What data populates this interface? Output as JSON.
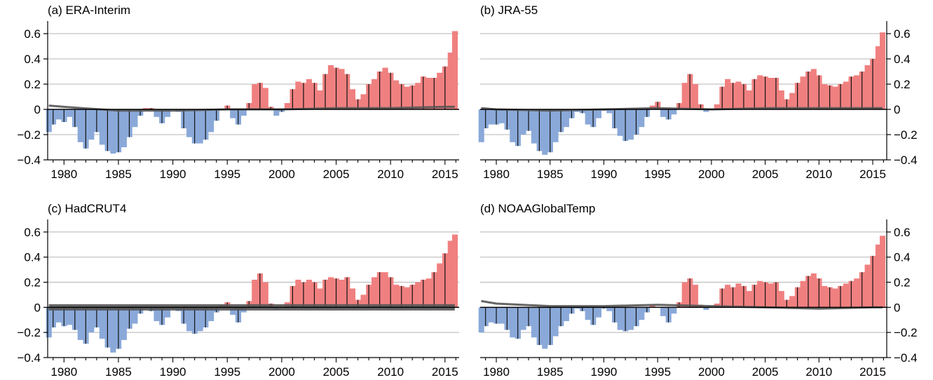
{
  "chart_data": [
    {
      "type": "area",
      "title": "(a) ERA-Interim",
      "xlim": [
        1978.5,
        2016.3
      ],
      "ylim": [
        -0.4,
        0.7
      ],
      "x_ticks": [
        1980,
        1985,
        1990,
        1995,
        2000,
        2005,
        2010,
        2015
      ],
      "y_ticks": [
        -0.4,
        -0.2,
        0,
        0.2,
        0.4,
        0.6
      ],
      "y_tick_labels": [
        "−0.4",
        "−0.2",
        "0",
        "0.2",
        "0.4",
        "0.6"
      ],
      "y_axis_side": "left",
      "grid": "horizontal",
      "colors": {
        "positive": "#f08080",
        "negative": "#8aa9d9",
        "spread": "#555555"
      },
      "series": [
        {
          "kind": "anomaly",
          "x": [
            1978.6,
            1979.0,
            1979.5,
            1980.0,
            1980.5,
            1981.0,
            1981.5,
            1982.0,
            1982.5,
            1983.0,
            1983.5,
            1984.0,
            1984.5,
            1985.0,
            1985.5,
            1986.0,
            1986.5,
            1987.0,
            1987.5,
            1988.0,
            1988.5,
            1989.0,
            1989.5,
            1990.0,
            1990.5,
            1991.0,
            1991.5,
            1992.0,
            1992.5,
            1993.0,
            1993.5,
            1994.0,
            1994.5,
            1995.0,
            1995.5,
            1996.0,
            1996.5,
            1997.0,
            1997.5,
            1998.0,
            1998.5,
            1999.0,
            1999.5,
            2000.0,
            2000.5,
            2001.0,
            2001.5,
            2002.0,
            2002.5,
            2003.0,
            2003.5,
            2004.0,
            2004.5,
            2005.0,
            2005.5,
            2006.0,
            2006.5,
            2007.0,
            2007.5,
            2008.0,
            2008.5,
            2009.0,
            2009.5,
            2010.0,
            2010.5,
            2011.0,
            2011.5,
            2012.0,
            2012.5,
            2013.0,
            2013.5,
            2014.0,
            2014.5,
            2015.0,
            2015.5,
            2015.9
          ],
          "y": [
            -0.18,
            -0.12,
            -0.08,
            -0.1,
            -0.06,
            -0.14,
            -0.26,
            -0.31,
            -0.24,
            -0.18,
            -0.28,
            -0.33,
            -0.35,
            -0.34,
            -0.3,
            -0.22,
            -0.14,
            -0.05,
            0.01,
            0.01,
            -0.06,
            -0.11,
            -0.06,
            0.0,
            -0.02,
            -0.15,
            -0.22,
            -0.27,
            -0.27,
            -0.24,
            -0.18,
            -0.09,
            0.0,
            0.03,
            -0.07,
            -0.12,
            -0.05,
            0.05,
            0.2,
            0.21,
            0.17,
            0.02,
            -0.05,
            -0.02,
            0.05,
            0.16,
            0.22,
            0.21,
            0.24,
            0.21,
            0.15,
            0.28,
            0.35,
            0.33,
            0.32,
            0.28,
            0.16,
            0.08,
            0.12,
            0.2,
            0.24,
            0.3,
            0.33,
            0.29,
            0.23,
            0.2,
            0.18,
            0.19,
            0.21,
            0.26,
            0.25,
            0.25,
            0.29,
            0.34,
            0.45,
            0.62
          ]
        },
        {
          "kind": "spread",
          "x": [
            1978.6,
            1980,
            1985,
            1990,
            1995,
            2000,
            2005,
            2010,
            2015,
            2015.9
          ],
          "y": [
            0.03,
            0.02,
            -0.01,
            -0.01,
            0.0,
            0.0,
            0.01,
            0.01,
            0.02,
            0.02
          ]
        }
      ]
    },
    {
      "type": "area",
      "title": "(b) JRA-55",
      "xlim": [
        1978.5,
        2016.3
      ],
      "ylim": [
        -0.4,
        0.7
      ],
      "x_ticks": [
        1980,
        1985,
        1990,
        1995,
        2000,
        2005,
        2010,
        2015
      ],
      "y_ticks": [
        -0.4,
        -0.2,
        0,
        0.2,
        0.4,
        0.6
      ],
      "y_tick_labels": [
        "−0.4",
        "−0.2",
        "0",
        "0.2",
        "0.4",
        "0.6"
      ],
      "y_axis_side": "right",
      "grid": "horizontal",
      "colors": {
        "positive": "#f08080",
        "negative": "#8aa9d9",
        "spread": "#555555"
      },
      "series": [
        {
          "kind": "anomaly",
          "x": [
            1978.6,
            1979.0,
            1979.5,
            1980.0,
            1980.5,
            1981.0,
            1981.5,
            1982.0,
            1982.5,
            1983.0,
            1983.5,
            1984.0,
            1984.5,
            1985.0,
            1985.5,
            1986.0,
            1986.5,
            1987.0,
            1987.5,
            1988.0,
            1988.5,
            1989.0,
            1989.5,
            1990.0,
            1990.5,
            1991.0,
            1991.5,
            1992.0,
            1992.5,
            1993.0,
            1993.5,
            1994.0,
            1994.5,
            1995.0,
            1995.5,
            1996.0,
            1996.5,
            1997.0,
            1997.5,
            1998.0,
            1998.5,
            1999.0,
            1999.5,
            2000.0,
            2000.5,
            2001.0,
            2001.5,
            2002.0,
            2002.5,
            2003.0,
            2003.5,
            2004.0,
            2004.5,
            2005.0,
            2005.5,
            2006.0,
            2006.5,
            2007.0,
            2007.5,
            2008.0,
            2008.5,
            2009.0,
            2009.5,
            2010.0,
            2010.5,
            2011.0,
            2011.5,
            2012.0,
            2012.5,
            2013.0,
            2013.5,
            2014.0,
            2014.5,
            2015.0,
            2015.5,
            2015.9
          ],
          "y": [
            -0.26,
            -0.15,
            -0.12,
            -0.12,
            -0.11,
            -0.16,
            -0.26,
            -0.29,
            -0.2,
            -0.17,
            -0.27,
            -0.33,
            -0.36,
            -0.34,
            -0.26,
            -0.18,
            -0.14,
            -0.07,
            -0.02,
            -0.03,
            -0.12,
            -0.14,
            -0.07,
            -0.01,
            -0.03,
            -0.15,
            -0.21,
            -0.25,
            -0.24,
            -0.2,
            -0.14,
            -0.06,
            0.03,
            0.06,
            -0.06,
            -0.08,
            -0.04,
            0.05,
            0.21,
            0.28,
            0.2,
            0.04,
            -0.02,
            0.0,
            0.04,
            0.18,
            0.24,
            0.21,
            0.22,
            0.2,
            0.15,
            0.24,
            0.27,
            0.26,
            0.25,
            0.25,
            0.15,
            0.08,
            0.13,
            0.21,
            0.26,
            0.3,
            0.32,
            0.27,
            0.2,
            0.19,
            0.18,
            0.2,
            0.22,
            0.26,
            0.27,
            0.3,
            0.35,
            0.4,
            0.5,
            0.61
          ]
        },
        {
          "kind": "spread",
          "x": [
            1978.6,
            1980,
            1985,
            1990,
            1995,
            2000,
            2005,
            2010,
            2015,
            2015.9
          ],
          "y": [
            0.01,
            0.0,
            -0.01,
            0.0,
            0.01,
            0.0,
            0.01,
            0.01,
            0.01,
            0.01
          ]
        }
      ]
    },
    {
      "type": "area",
      "title": "(c) HadCRUT4",
      "xlim": [
        1978.5,
        2016.3
      ],
      "ylim": [
        -0.4,
        0.7
      ],
      "x_ticks": [
        1980,
        1985,
        1990,
        1995,
        2000,
        2005,
        2010,
        2015
      ],
      "y_ticks": [
        -0.4,
        -0.2,
        0,
        0.2,
        0.4,
        0.6
      ],
      "y_tick_labels": [
        "−0.4",
        "−0.2",
        "0",
        "0.2",
        "0.4",
        "0.6"
      ],
      "y_axis_side": "left",
      "grid": "horizontal",
      "colors": {
        "positive": "#f08080",
        "negative": "#8aa9d9",
        "spread": "#555555"
      },
      "series": [
        {
          "kind": "anomaly",
          "x": [
            1978.6,
            1979.0,
            1979.5,
            1980.0,
            1980.5,
            1981.0,
            1981.5,
            1982.0,
            1982.5,
            1983.0,
            1983.5,
            1984.0,
            1984.5,
            1985.0,
            1985.5,
            1986.0,
            1986.5,
            1987.0,
            1987.5,
            1988.0,
            1988.5,
            1989.0,
            1989.5,
            1990.0,
            1990.5,
            1991.0,
            1991.5,
            1992.0,
            1992.5,
            1993.0,
            1993.5,
            1994.0,
            1994.5,
            1995.0,
            1995.5,
            1996.0,
            1996.5,
            1997.0,
            1997.5,
            1998.0,
            1998.5,
            1999.0,
            1999.5,
            2000.0,
            2000.5,
            2001.0,
            2001.5,
            2002.0,
            2002.5,
            2003.0,
            2003.5,
            2004.0,
            2004.5,
            2005.0,
            2005.5,
            2006.0,
            2006.5,
            2007.0,
            2007.5,
            2008.0,
            2008.5,
            2009.0,
            2009.5,
            2010.0,
            2010.5,
            2011.0,
            2011.5,
            2012.0,
            2012.5,
            2013.0,
            2013.5,
            2014.0,
            2014.5,
            2015.0,
            2015.5,
            2015.9
          ],
          "y": [
            -0.24,
            -0.16,
            -0.12,
            -0.15,
            -0.14,
            -0.18,
            -0.26,
            -0.29,
            -0.2,
            -0.16,
            -0.25,
            -0.32,
            -0.36,
            -0.33,
            -0.26,
            -0.17,
            -0.13,
            -0.05,
            -0.01,
            -0.03,
            -0.11,
            -0.14,
            -0.08,
            -0.01,
            -0.03,
            -0.13,
            -0.19,
            -0.21,
            -0.19,
            -0.16,
            -0.11,
            -0.04,
            0.02,
            0.04,
            -0.06,
            -0.12,
            -0.04,
            0.05,
            0.22,
            0.27,
            0.2,
            0.03,
            -0.02,
            0.0,
            0.04,
            0.17,
            0.22,
            0.2,
            0.22,
            0.2,
            0.15,
            0.22,
            0.24,
            0.23,
            0.22,
            0.24,
            0.15,
            0.06,
            0.1,
            0.18,
            0.24,
            0.28,
            0.28,
            0.24,
            0.18,
            0.17,
            0.16,
            0.18,
            0.2,
            0.22,
            0.23,
            0.28,
            0.35,
            0.43,
            0.53,
            0.58
          ]
        },
        {
          "kind": "spread",
          "x": [
            1978.6,
            1980,
            1985,
            1990,
            1995,
            2000,
            2005,
            2010,
            2015,
            2015.9
          ],
          "y": [
            0.0,
            0.0,
            0.0,
            0.0,
            0.0,
            0.0,
            0.0,
            0.0,
            0.0,
            0.0
          ]
        }
      ]
    },
    {
      "type": "area",
      "title": "(d) NOAAGlobalTemp",
      "xlim": [
        1978.5,
        2016.3
      ],
      "ylim": [
        -0.4,
        0.7
      ],
      "x_ticks": [
        1980,
        1985,
        1990,
        1995,
        2000,
        2005,
        2010,
        2015
      ],
      "y_ticks": [
        -0.4,
        -0.2,
        0,
        0.2,
        0.4,
        0.6
      ],
      "y_tick_labels": [
        "−0.4",
        "−0.2",
        "0",
        "0.2",
        "0.4",
        "0.6"
      ],
      "y_axis_side": "right",
      "grid": "horizontal",
      "colors": {
        "positive": "#f08080",
        "negative": "#8aa9d9",
        "spread": "#555555"
      },
      "series": [
        {
          "kind": "anomaly",
          "x": [
            1978.6,
            1979.0,
            1979.5,
            1980.0,
            1980.5,
            1981.0,
            1981.5,
            1982.0,
            1982.5,
            1983.0,
            1983.5,
            1984.0,
            1984.5,
            1985.0,
            1985.5,
            1986.0,
            1986.5,
            1987.0,
            1987.5,
            1988.0,
            1988.5,
            1989.0,
            1989.5,
            1990.0,
            1990.5,
            1991.0,
            1991.5,
            1992.0,
            1992.5,
            1993.0,
            1993.5,
            1994.0,
            1994.5,
            1995.0,
            1995.5,
            1996.0,
            1996.5,
            1997.0,
            1997.5,
            1998.0,
            1998.5,
            1999.0,
            1999.5,
            2000.0,
            2000.5,
            2001.0,
            2001.5,
            2002.0,
            2002.5,
            2003.0,
            2003.5,
            2004.0,
            2004.5,
            2005.0,
            2005.5,
            2006.0,
            2006.5,
            2007.0,
            2007.5,
            2008.0,
            2008.5,
            2009.0,
            2009.5,
            2010.0,
            2010.5,
            2011.0,
            2011.5,
            2012.0,
            2012.5,
            2013.0,
            2013.5,
            2014.0,
            2014.5,
            2015.0,
            2015.5,
            2015.9
          ],
          "y": [
            -0.2,
            -0.15,
            -0.12,
            -0.13,
            -0.13,
            -0.18,
            -0.24,
            -0.25,
            -0.18,
            -0.15,
            -0.24,
            -0.3,
            -0.33,
            -0.3,
            -0.23,
            -0.15,
            -0.11,
            -0.05,
            -0.01,
            -0.03,
            -0.1,
            -0.14,
            -0.08,
            -0.01,
            -0.03,
            -0.12,
            -0.18,
            -0.19,
            -0.18,
            -0.15,
            -0.1,
            -0.04,
            0.02,
            0.0,
            -0.07,
            -0.12,
            -0.05,
            0.04,
            0.2,
            0.23,
            0.18,
            0.02,
            -0.02,
            0.0,
            0.03,
            0.15,
            0.18,
            0.16,
            0.19,
            0.17,
            0.13,
            0.18,
            0.21,
            0.2,
            0.19,
            0.2,
            0.13,
            0.06,
            0.09,
            0.16,
            0.21,
            0.25,
            0.27,
            0.23,
            0.17,
            0.16,
            0.15,
            0.17,
            0.19,
            0.21,
            0.23,
            0.28,
            0.34,
            0.41,
            0.5,
            0.57
          ]
        },
        {
          "kind": "spread",
          "x": [
            1978.6,
            1980,
            1985,
            1990,
            1995,
            2000,
            2005,
            2010,
            2015,
            2015.9
          ],
          "y": [
            0.05,
            0.03,
            0.01,
            0.01,
            0.02,
            0.01,
            0.0,
            -0.01,
            0.0,
            0.0
          ]
        }
      ]
    }
  ]
}
